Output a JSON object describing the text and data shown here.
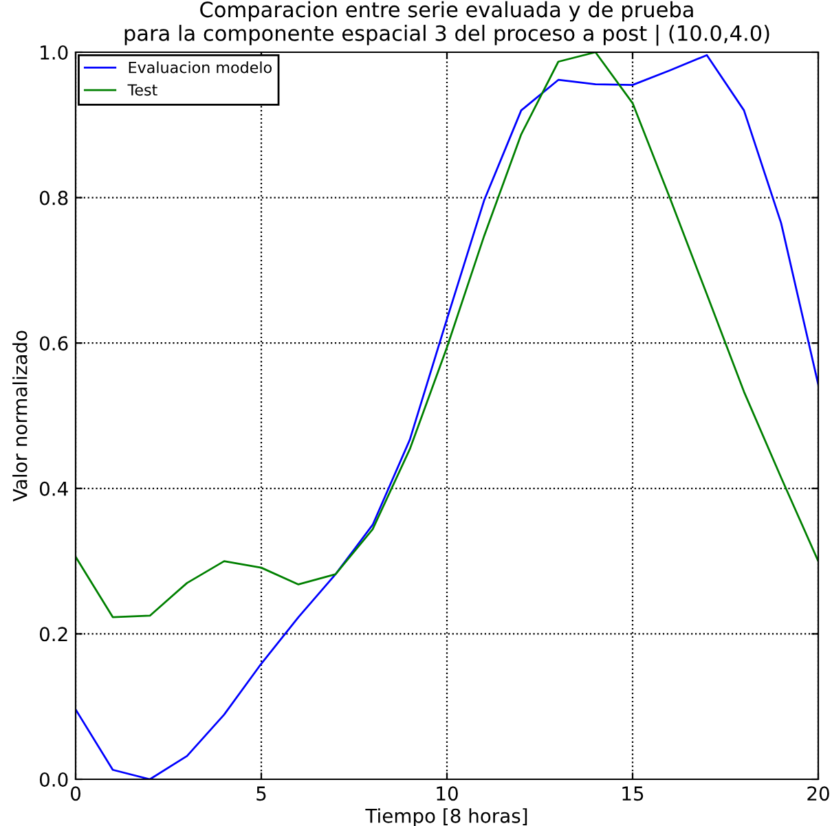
{
  "chart_data": {
    "type": "line",
    "title": "Comparacion entre serie evaluada y de prueba\npara la componente espacial 3 del proceso a post | (10.0,4.0)",
    "xlabel": "Tiempo [8 horas]",
    "ylabel": "Valor normalizado",
    "x": [
      0,
      1,
      2,
      3,
      4,
      5,
      6,
      7,
      8,
      9,
      10,
      11,
      12,
      13,
      14,
      15,
      16,
      17,
      18,
      19,
      20
    ],
    "series": [
      {
        "name": "Evaluacion modelo",
        "color": "#0000ff",
        "values": [
          0.096,
          0.013,
          0.0,
          0.032,
          0.089,
          0.159,
          0.223,
          0.282,
          0.35,
          0.467,
          0.633,
          0.796,
          0.92,
          0.962,
          0.956,
          0.955,
          0.975,
          0.996,
          0.92,
          0.765,
          0.543
        ]
      },
      {
        "name": "Test",
        "color": "#008000",
        "values": [
          0.306,
          0.223,
          0.225,
          0.27,
          0.3,
          0.291,
          0.268,
          0.282,
          0.344,
          0.454,
          0.594,
          0.747,
          0.887,
          0.987,
          1.0,
          0.93,
          0.8,
          0.667,
          0.533,
          0.415,
          0.3
        ]
      }
    ],
    "xlim": [
      0,
      20
    ],
    "ylim": [
      0.0,
      1.0
    ],
    "xticks": [
      0,
      5,
      10,
      15,
      20
    ],
    "yticks": [
      {
        "value": 0,
        "label": "0.0"
      },
      0.2,
      0.4,
      0.6,
      0.8,
      {
        "value": 1,
        "label": "1.0"
      }
    ],
    "grid": true,
    "legend": "top left",
    "line_style": "solid",
    "marker": "none"
  }
}
